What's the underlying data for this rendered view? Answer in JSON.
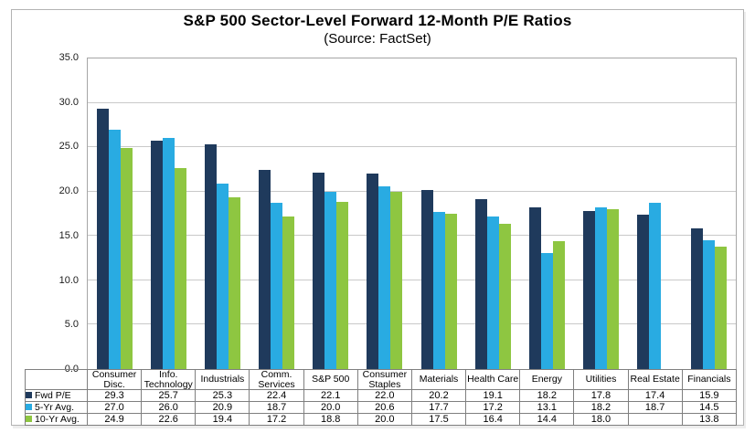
{
  "chart_data": {
    "type": "bar",
    "title": "S&P 500 Sector-Level Forward 12-Month P/E Ratios",
    "subtitle": "(Source: FactSet)",
    "categories": [
      "Consumer Disc.",
      "Info. Technology",
      "Industrials",
      "Comm. Services",
      "S&P 500",
      "Consumer Staples",
      "Materials",
      "Health Care",
      "Energy",
      "Utilities",
      "Real Estate",
      "Financials"
    ],
    "series": [
      {
        "name": "Fwd P/E",
        "color": "#1F3A5C",
        "values": [
          29.3,
          25.7,
          25.3,
          22.4,
          22.1,
          22.0,
          20.2,
          19.1,
          18.2,
          17.8,
          17.4,
          15.9
        ]
      },
      {
        "name": "5-Yr Avg.",
        "color": "#29ABE2",
        "values": [
          27.0,
          26.0,
          20.9,
          18.7,
          20.0,
          20.6,
          17.7,
          17.2,
          13.1,
          18.2,
          18.7,
          14.5
        ]
      },
      {
        "name": "10-Yr Avg.",
        "color": "#8EC641",
        "values": [
          24.9,
          22.6,
          19.4,
          17.2,
          18.8,
          20.0,
          17.5,
          16.4,
          14.4,
          18.0,
          null,
          13.8
        ]
      }
    ],
    "ylim": [
      0,
      35
    ],
    "ytick_step": 5,
    "ytick_labels": [
      "0.0",
      "5.0",
      "10.0",
      "15.0",
      "20.0",
      "25.0",
      "30.0",
      "35.0"
    ],
    "grid": true,
    "legend_position": "table-left",
    "colors": {
      "grid": "#c9c9c9",
      "plot_border": "#a6a6a6",
      "table_border": "#7f7f7f"
    }
  }
}
